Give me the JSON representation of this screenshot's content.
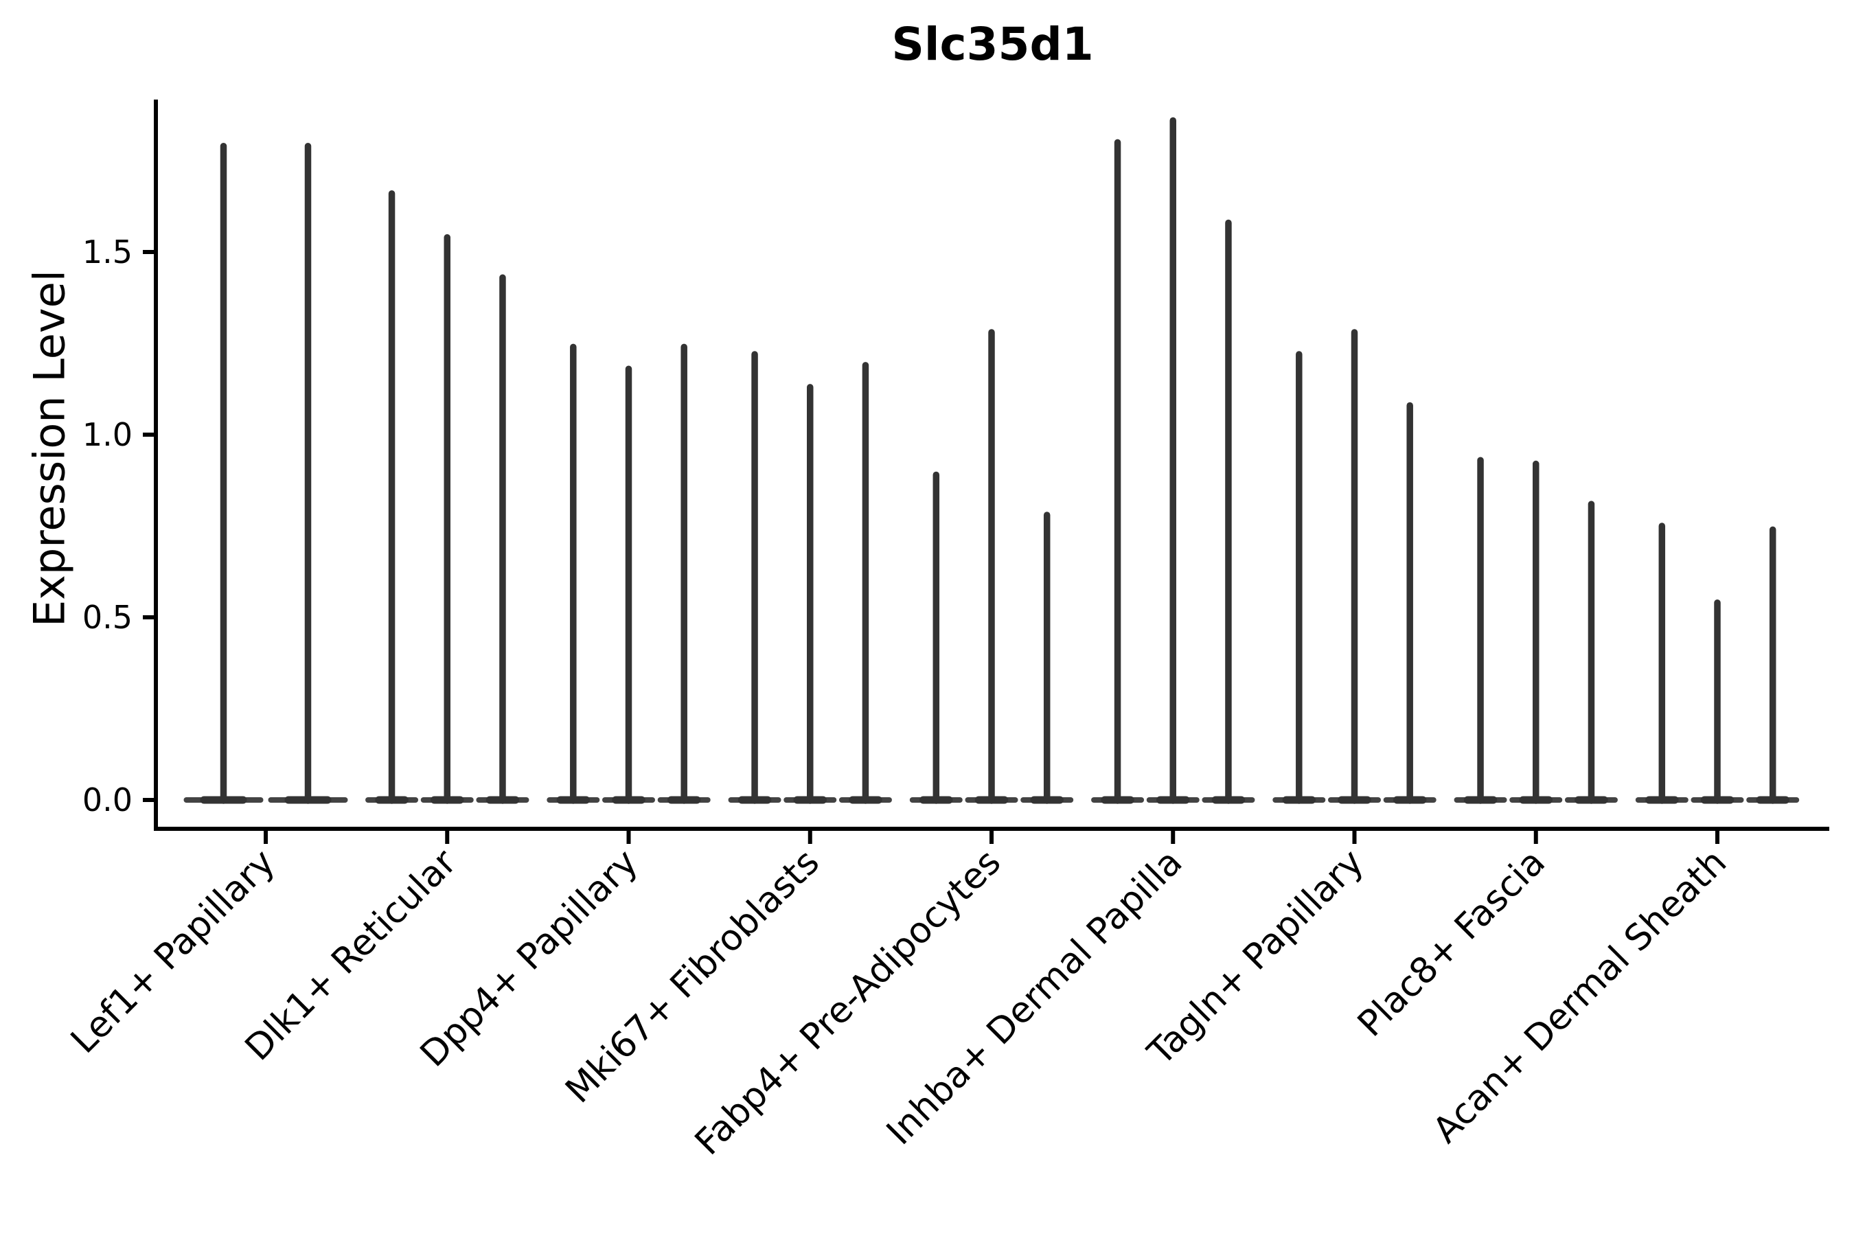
{
  "title": "Slc35d1",
  "chart_data": {
    "type": "violin",
    "title": "Slc35d1",
    "xlabel": "",
    "ylabel": "Expression Level",
    "ylim": [
      -0.08,
      1.92
    ],
    "grid": false,
    "legend": "none",
    "violin_color": "#333333",
    "axis_color": "#000000",
    "yticks": [
      {
        "value": 0.0,
        "label": "0.0"
      },
      {
        "value": 0.5,
        "label": "0.5"
      },
      {
        "value": 1.0,
        "label": "1.0"
      },
      {
        "value": 1.5,
        "label": "1.5"
      }
    ],
    "categories": [
      "Lef1+ Papillary",
      "Dlk1+ Reticular",
      "Dpp4+ Papillary",
      "Mki67+ Fibroblasts",
      "Fabp4+ Pre-Adipocytes",
      "Inhba+ Dermal Papilla",
      "Tagln+ Papillary",
      "Plac8+ Fascia",
      "Acan+ Dermal Sheath"
    ],
    "groups": [
      {
        "category": "Lef1+ Papillary",
        "violin_maxima": [
          1.79,
          1.79
        ],
        "baseline": 0.0
      },
      {
        "category": "Dlk1+ Reticular",
        "violin_maxima": [
          1.66,
          1.54,
          1.43
        ],
        "baseline": 0.0
      },
      {
        "category": "Dpp4+ Papillary",
        "violin_maxima": [
          1.24,
          1.18,
          1.24
        ],
        "baseline": 0.0
      },
      {
        "category": "Mki67+ Fibroblasts",
        "violin_maxima": [
          1.22,
          1.13,
          1.19
        ],
        "baseline": 0.0
      },
      {
        "category": "Fabp4+ Pre-Adipocytes",
        "violin_maxima": [
          0.89,
          1.28,
          0.78
        ],
        "baseline": 0.0
      },
      {
        "category": "Inhba+ Dermal Papilla",
        "violin_maxima": [
          1.8,
          1.86,
          1.58
        ],
        "baseline": 0.0
      },
      {
        "category": "Tagln+ Papillary",
        "violin_maxima": [
          1.22,
          1.28,
          1.08
        ],
        "baseline": 0.0
      },
      {
        "category": "Plac8+ Fascia",
        "violin_maxima": [
          0.93,
          0.92,
          0.81
        ],
        "baseline": 0.0
      },
      {
        "category": "Acan+ Dermal Sheath",
        "violin_maxima": [
          0.75,
          0.54,
          0.74
        ],
        "baseline": 0.0
      }
    ]
  }
}
